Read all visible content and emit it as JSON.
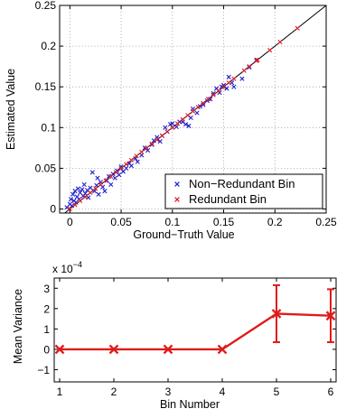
{
  "chart_data": [
    {
      "type": "scatter",
      "title": "",
      "xlabel": "Ground−Truth Value",
      "ylabel": "Estimated Value",
      "xlim": [
        -0.01,
        0.25
      ],
      "ylim": [
        -0.005,
        0.25
      ],
      "xticks": [
        "0",
        "0.05",
        "0.1",
        "0.15",
        "0.2",
        "0.25"
      ],
      "yticks": [
        "0",
        "0.05",
        "0.1",
        "0.15",
        "0.2",
        "0.25"
      ],
      "grid": true,
      "legend_position": "bottom-right",
      "reference_line": "y = x",
      "colors": {
        "non_redundant": "#1f1fcc",
        "redundant": "#e01b1b"
      },
      "series": [
        {
          "name": "Non−Redundant Bin",
          "marker": "x",
          "points": [
            [
              -0.003,
              0.002
            ],
            [
              0.0,
              0.006
            ],
            [
              0.001,
              0.012
            ],
            [
              0.002,
              0.004
            ],
            [
              0.003,
              0.018
            ],
            [
              0.004,
              0.01
            ],
            [
              0.005,
              0.022
            ],
            [
              0.006,
              0.008
            ],
            [
              0.007,
              0.015
            ],
            [
              0.008,
              0.025
            ],
            [
              0.009,
              0.012
            ],
            [
              0.01,
              0.02
            ],
            [
              0.012,
              0.024
            ],
            [
              0.013,
              0.016
            ],
            [
              0.014,
              0.03
            ],
            [
              0.015,
              0.019
            ],
            [
              0.017,
              0.023
            ],
            [
              0.018,
              0.014
            ],
            [
              0.02,
              0.026
            ],
            [
              0.022,
              0.045
            ],
            [
              0.024,
              0.022
            ],
            [
              0.026,
              0.029
            ],
            [
              0.027,
              0.038
            ],
            [
              0.028,
              0.018
            ],
            [
              0.03,
              0.033
            ],
            [
              0.032,
              0.027
            ],
            [
              0.034,
              0.022
            ],
            [
              0.036,
              0.035
            ],
            [
              0.038,
              0.04
            ],
            [
              0.04,
              0.03
            ],
            [
              0.042,
              0.043
            ],
            [
              0.044,
              0.038
            ],
            [
              0.046,
              0.047
            ],
            [
              0.048,
              0.042
            ],
            [
              0.05,
              0.052
            ],
            [
              0.052,
              0.046
            ],
            [
              0.055,
              0.05
            ],
            [
              0.058,
              0.056
            ],
            [
              0.06,
              0.053
            ],
            [
              0.064,
              0.062
            ],
            [
              0.066,
              0.058
            ],
            [
              0.07,
              0.066
            ],
            [
              0.073,
              0.075
            ],
            [
              0.076,
              0.072
            ],
            [
              0.08,
              0.079
            ],
            [
              0.082,
              0.084
            ],
            [
              0.085,
              0.088
            ],
            [
              0.088,
              0.083
            ],
            [
              0.09,
              0.09
            ],
            [
              0.093,
              0.1
            ],
            [
              0.095,
              0.095
            ],
            [
              0.098,
              0.104
            ],
            [
              0.1,
              0.105
            ],
            [
              0.104,
              0.101
            ],
            [
              0.107,
              0.107
            ],
            [
              0.11,
              0.107
            ],
            [
              0.113,
              0.104
            ],
            [
              0.116,
              0.102
            ],
            [
              0.118,
              0.112
            ],
            [
              0.12,
              0.123
            ],
            [
              0.124,
              0.118
            ],
            [
              0.127,
              0.126
            ],
            [
              0.13,
              0.128
            ],
            [
              0.134,
              0.133
            ],
            [
              0.137,
              0.135
            ],
            [
              0.14,
              0.142
            ],
            [
              0.143,
              0.148
            ],
            [
              0.146,
              0.143
            ],
            [
              0.148,
              0.15
            ],
            [
              0.15,
              0.152
            ],
            [
              0.153,
              0.148
            ],
            [
              0.155,
              0.162
            ],
            [
              0.158,
              0.155
            ],
            [
              0.16,
              0.15
            ],
            [
              0.168,
              0.16
            ],
            [
              0.175,
              0.174
            ],
            [
              0.182,
              0.183
            ]
          ]
        },
        {
          "name": "Redundant Bin",
          "marker": "x",
          "points": [
            [
              0.0,
              0.0
            ],
            [
              0.005,
              0.005
            ],
            [
              0.01,
              0.01
            ],
            [
              0.015,
              0.015
            ],
            [
              0.02,
              0.02
            ],
            [
              0.025,
              0.025
            ],
            [
              0.03,
              0.03
            ],
            [
              0.035,
              0.035
            ],
            [
              0.04,
              0.04
            ],
            [
              0.045,
              0.045
            ],
            [
              0.05,
              0.05
            ],
            [
              0.055,
              0.055
            ],
            [
              0.06,
              0.06
            ],
            [
              0.065,
              0.065
            ],
            [
              0.07,
              0.07
            ],
            [
              0.075,
              0.075
            ],
            [
              0.08,
              0.08
            ],
            [
              0.085,
              0.085
            ],
            [
              0.09,
              0.09
            ],
            [
              0.095,
              0.095
            ],
            [
              0.1,
              0.1
            ],
            [
              0.105,
              0.105
            ],
            [
              0.11,
              0.11
            ],
            [
              0.115,
              0.115
            ],
            [
              0.12,
              0.12
            ],
            [
              0.125,
              0.125
            ],
            [
              0.13,
              0.13
            ],
            [
              0.135,
              0.135
            ],
            [
              0.14,
              0.14
            ],
            [
              0.145,
              0.145
            ],
            [
              0.15,
              0.15
            ],
            [
              0.155,
              0.155
            ],
            [
              0.16,
              0.16
            ],
            [
              0.17,
              0.17
            ],
            [
              0.175,
              0.175
            ],
            [
              0.182,
              0.182
            ],
            [
              0.183,
              0.183
            ],
            [
              0.195,
              0.195
            ],
            [
              0.205,
              0.205
            ],
            [
              0.222,
              0.222
            ]
          ]
        }
      ]
    },
    {
      "type": "line",
      "title": "",
      "xlabel": "Bin Number",
      "ylabel": "Mean Variance",
      "exponent_label": "x 10",
      "exponent_power": "−4",
      "xlim": [
        0.9,
        6.1
      ],
      "ylim": [
        -1.6,
        3.5
      ],
      "xticks": [
        "1",
        "2",
        "3",
        "4",
        "5",
        "6"
      ],
      "yticks": [
        "−1",
        "0",
        "1",
        "2",
        "3"
      ],
      "grid": false,
      "color": "#e01b1b",
      "series": [
        {
          "x": [
            1,
            2,
            3,
            4,
            5,
            6
          ],
          "values": [
            0,
            0,
            0,
            0,
            1.75,
            1.65
          ],
          "error": [
            0,
            0,
            0,
            0,
            1.4,
            1.3
          ]
        }
      ]
    }
  ]
}
